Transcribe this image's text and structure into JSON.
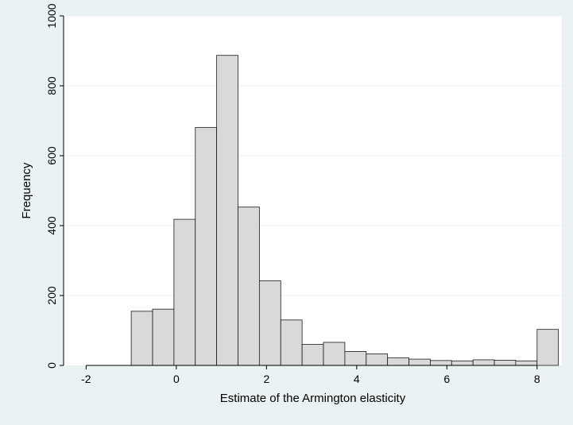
{
  "chart_data": {
    "type": "bar",
    "title": "",
    "xlabel": "Estimate of the Armington elasticity",
    "ylabel": "Frequency",
    "xlim": [
      -2.5,
      8.55
    ],
    "ylim": [
      0,
      1000
    ],
    "x_ticks": [
      -2,
      0,
      2,
      4,
      6,
      8
    ],
    "y_ticks": [
      0,
      200,
      400,
      600,
      800,
      1000
    ],
    "grid": "horizontal",
    "legend": "none",
    "bin_edges": [
      -1.0,
      -0.5263,
      -0.0526,
      0.4211,
      0.8947,
      1.3684,
      1.8421,
      2.3158,
      2.7895,
      3.2632,
      3.7368,
      4.2105,
      4.6842,
      5.1579,
      5.6316,
      6.1053,
      6.5789,
      7.0526,
      7.5263,
      8.0,
      8.4737
    ],
    "values": [
      155,
      161,
      418,
      681,
      887,
      453,
      242,
      130,
      60,
      66,
      40,
      33,
      22,
      18,
      14,
      13,
      16,
      15,
      13,
      103
    ],
    "colors": {
      "background": "#eaf2f3",
      "plot_background": "#ffffff",
      "bar_fill": "#d9d9d9",
      "bar_stroke": "#1a1a1a",
      "grid": "#eaf2f3",
      "axis": "#000000"
    }
  }
}
